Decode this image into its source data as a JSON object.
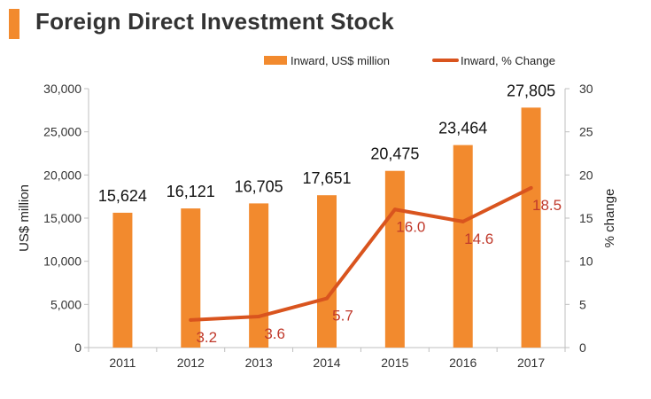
{
  "chart_data": {
    "type": "bar+line",
    "title": "Foreign Direct Investment Stock",
    "categories": [
      "2011",
      "2012",
      "2013",
      "2014",
      "2015",
      "2016",
      "2017"
    ],
    "series": [
      {
        "name": "Inward, US$ million",
        "type": "bar",
        "axis": "left",
        "values": [
          15624,
          16121,
          16705,
          17651,
          20475,
          23464,
          27805
        ],
        "labels": [
          "15,624",
          "16,121",
          "16,705",
          "17,651",
          "20,475",
          "23,464",
          "27,805"
        ]
      },
      {
        "name": "Inward, % Change",
        "type": "line",
        "axis": "right",
        "values": [
          null,
          3.2,
          3.6,
          5.7,
          16.0,
          14.6,
          18.5
        ],
        "labels": [
          "",
          "3.2",
          "3.6",
          "5.7",
          "16.0",
          "14.6",
          "18.5"
        ]
      }
    ],
    "ylabel": "US$ million",
    "ylabel_right": "% change",
    "ylim": [
      0,
      30000
    ],
    "ylim_right": [
      0,
      30
    ],
    "yticks": [
      "0",
      "5,000",
      "10,000",
      "15,000",
      "20,000",
      "25,000",
      "30,000"
    ],
    "yticks_right": [
      "0",
      "5",
      "10",
      "15",
      "20",
      "25",
      "30"
    ],
    "legend_position": "top-right",
    "colors": {
      "bar": "#f28a2e",
      "line": "#d9541e",
      "line_label": "#c0392b",
      "title_accent": "#f28a2e"
    }
  }
}
